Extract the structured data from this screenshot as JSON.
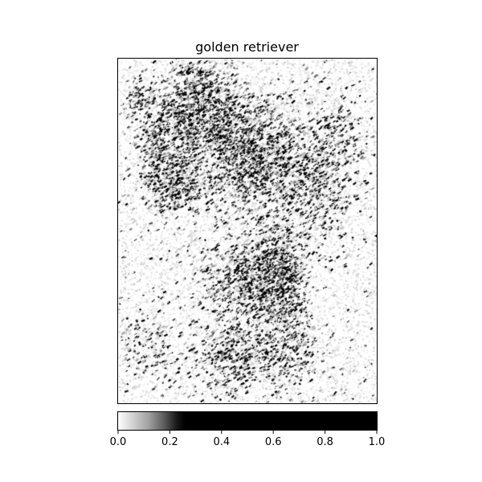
{
  "chart_data": {
    "type": "heatmap",
    "title": "golden retriever",
    "colormap": "gray_r",
    "colorbar": {
      "orientation": "horizontal",
      "range": [
        0.0,
        1.0
      ],
      "ticks": [
        "0.0",
        "0.2",
        "0.4",
        "0.6",
        "0.8",
        "1.0"
      ]
    },
    "axes_ticks_visible": false,
    "grid": false
  }
}
